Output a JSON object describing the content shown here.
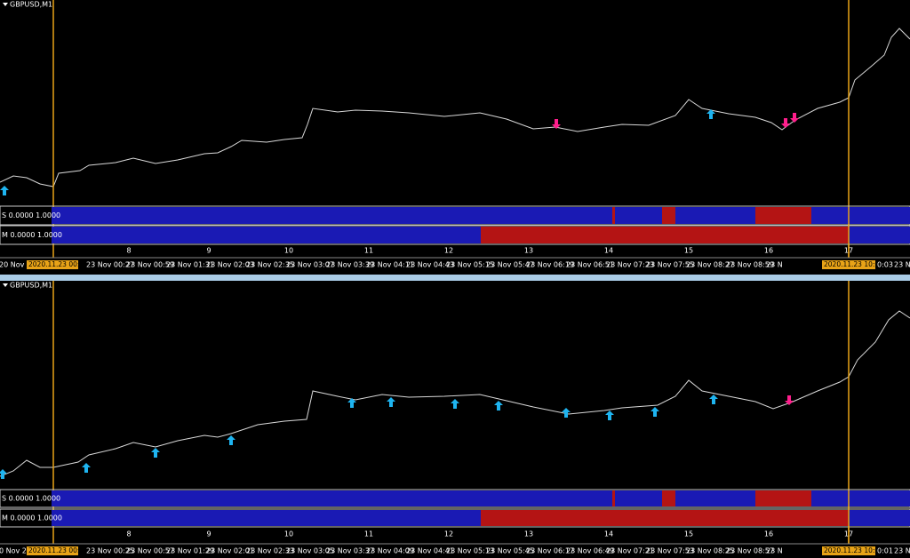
{
  "panels": [
    {
      "symbol": "GBPUSD,M1",
      "indicators": [
        "S 0.0000 1.0000",
        "M 0.0000 1.0000"
      ],
      "hours": [
        8,
        9,
        10,
        11,
        12,
        13,
        14,
        15,
        16,
        17
      ],
      "time_left": "20 Nov 2",
      "time_start": "2020.11.23 00:00",
      "times": [
        "23 Nov 00:27",
        "23 Nov 00:59",
        "23 Nov 01:31",
        "23 Nov 02:03",
        "23 Nov 02:35",
        "23 Nov 03:07",
        "23 Nov 03:39",
        "23 Nov 04:11",
        "23 Nov 04:43",
        "23 Nov 05:15",
        "23 Nov 05:47",
        "23 Nov 06:19",
        "23 Nov 06:51",
        "23 Nov 07:23",
        "23 Nov 07:55",
        "23 Nov 08:27",
        "23 Nov 08:59",
        "23 N"
      ],
      "time_end": "2020.11.23 10:00",
      "time_after": "0:03",
      "time_last": "23 N"
    },
    {
      "symbol": "GBPUSD,M1",
      "indicators": [
        "S 0.0000 1.0000",
        "M 0.0000 1.0000"
      ],
      "hours": [
        8,
        9,
        10,
        11,
        12,
        13,
        14,
        15,
        16,
        17
      ],
      "time_left": "0 Nov 20",
      "time_start": "2020.11.23 00:00",
      "times": [
        "23 Nov 00:25",
        "23 Nov 00:57",
        "23 Nov 01:29",
        "23 Nov 02:01",
        "23 Nov 02:33",
        "23 Nov 03:05",
        "23 Nov 03:37",
        "23 Nov 04:09",
        "23 Nov 04:41",
        "23 Nov 05:13",
        "23 Nov 05:45",
        "23 Nov 06:17",
        "23 Nov 06:49",
        "23 Nov 07:21",
        "23 Nov 07:53",
        "23 Nov 08:25",
        "23 Nov 08:57",
        "23 N"
      ],
      "time_end": "2020.11.23 10:00",
      "time_after": "0:01",
      "time_last": "23 N"
    }
  ]
}
